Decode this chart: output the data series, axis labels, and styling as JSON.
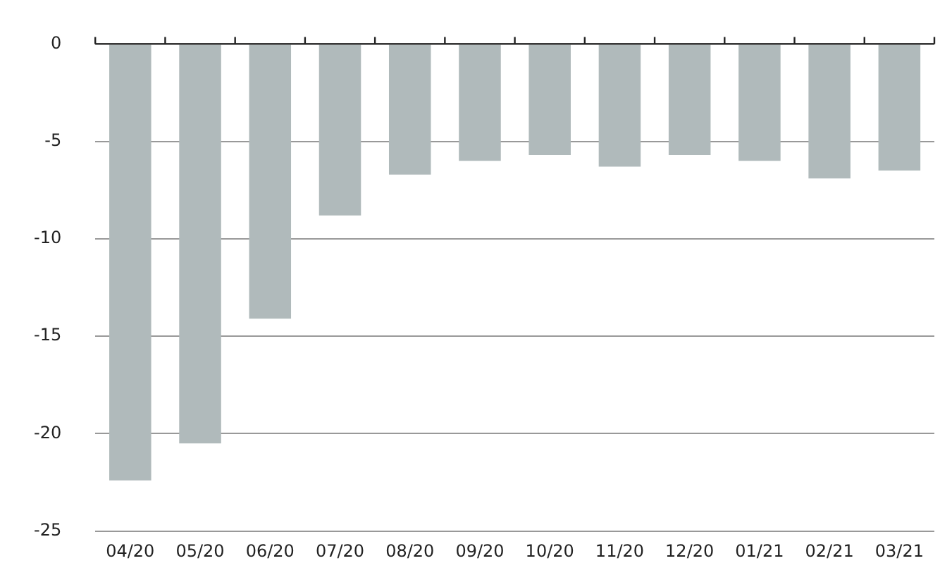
{
  "chart_data": {
    "type": "bar",
    "categories": [
      "04/20",
      "05/20",
      "06/20",
      "07/20",
      "08/20",
      "09/20",
      "10/20",
      "11/20",
      "12/20",
      "01/21",
      "02/21",
      "03/21"
    ],
    "values": [
      -22.4,
      -20.5,
      -14.1,
      -8.8,
      -6.7,
      -6.0,
      -5.7,
      -6.3,
      -5.7,
      -6.0,
      -6.9,
      -6.5
    ],
    "color": "#b0babb",
    "ylim": [
      -25,
      0
    ],
    "yticks": [
      -25,
      -20,
      -15,
      -10,
      -5,
      0
    ],
    "grid": "y",
    "legend": false
  }
}
